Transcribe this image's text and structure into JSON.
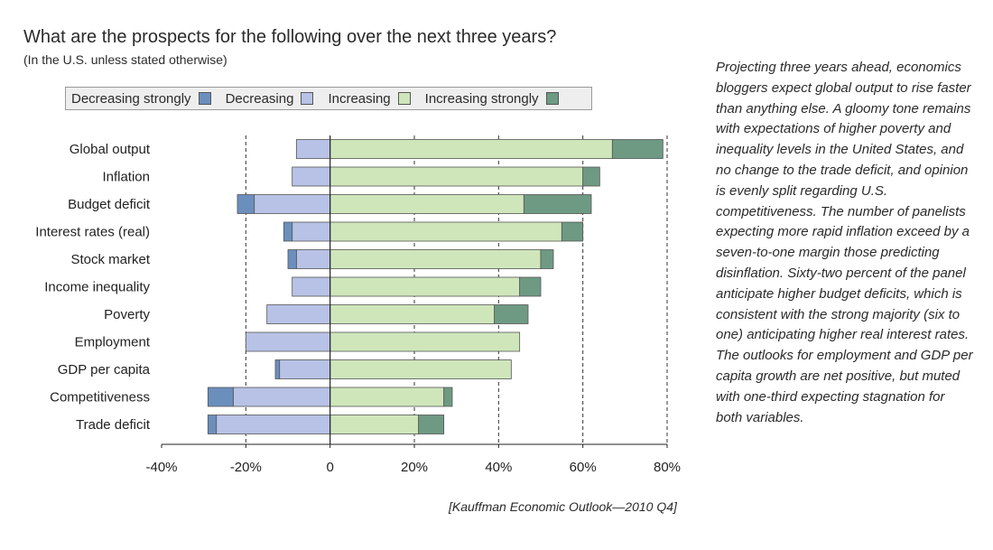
{
  "title": "What are the prospects for the following over the next three years?",
  "subtitle": "(In the U.S. unless stated otherwise)",
  "legend": [
    {
      "label": "Decreasing strongly",
      "color": "#6b8fbd"
    },
    {
      "label": "Decreasing",
      "color": "#b8c2e6"
    },
    {
      "label": "Increasing",
      "color": "#cfe6bb"
    },
    {
      "label": "Increasing strongly",
      "color": "#6e9a84"
    }
  ],
  "side_text": "Projecting three years ahead, economics bloggers expect global output to rise faster than anything else. A gloomy tone remains with expectations of higher poverty and inequality levels in the United States, and no change to the trade deficit, and opinion is evenly split regarding U.S. competitiveness. The number of panelists expecting more rapid inflation exceed by a seven-to-one margin those predicting disinflation. Sixty-two percent of the panel anticipate higher budget deficits, which is consistent with the strong majority (six to one) anticipating higher real interest rates. The outlooks for employment and GDP per capita growth are net positive, but muted with one-third expecting stagnation for both variables.",
  "source": "[Kauffman Economic Outlook—2010 Q4]",
  "chart_data": {
    "type": "bar",
    "orientation": "horizontal",
    "stacked": "diverging",
    "categories": [
      "Global output",
      "Inflation",
      "Budget deficit",
      "Interest rates (real)",
      "Stock market",
      "Income inequality",
      "Poverty",
      "Employment",
      "GDP per capita",
      "Competitiveness",
      "Trade deficit"
    ],
    "series": [
      {
        "name": "Decreasing strongly",
        "color": "#6b8fbd",
        "values": [
          0,
          0,
          -4,
          -2,
          -2,
          0,
          0,
          0,
          -1,
          -6,
          -2
        ]
      },
      {
        "name": "Decreasing",
        "color": "#b8c2e6",
        "values": [
          -8,
          -9,
          -18,
          -9,
          -8,
          -9,
          -15,
          -20,
          -12,
          -23,
          -27
        ]
      },
      {
        "name": "Increasing",
        "color": "#cfe6bb",
        "values": [
          67,
          60,
          46,
          55,
          50,
          45,
          39,
          45,
          43,
          27,
          21
        ]
      },
      {
        "name": "Increasing strongly",
        "color": "#6e9a84",
        "values": [
          12,
          4,
          16,
          5,
          3,
          5,
          8,
          0,
          0,
          2,
          6
        ]
      }
    ],
    "xlim": [
      -40,
      80
    ],
    "xticks": [
      "-40%",
      "-20%",
      "0",
      "20%",
      "40%",
      "60%",
      "80%"
    ],
    "grid": "vertical dashed"
  }
}
